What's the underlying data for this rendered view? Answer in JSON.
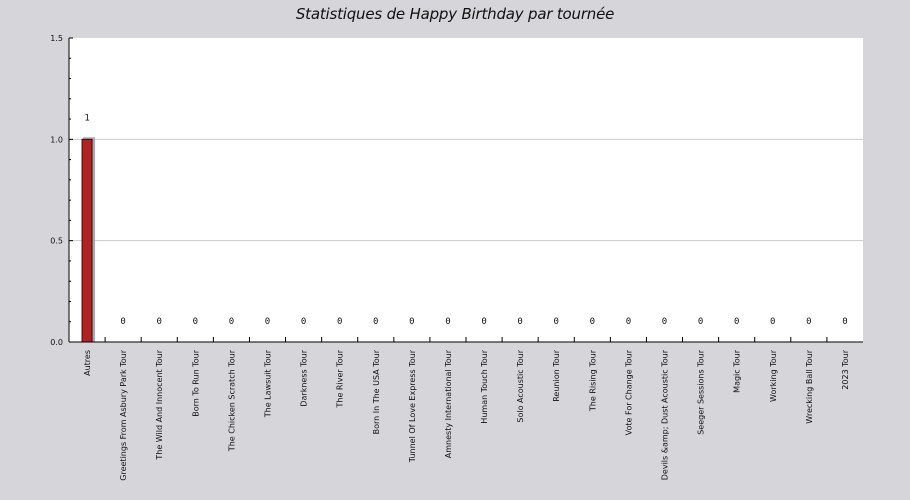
{
  "chart_data": {
    "type": "bar",
    "title": "Statistiques de Happy Birthday par tournée",
    "xlabel": "",
    "ylabel": "",
    "ylim": [
      0,
      1.5
    ],
    "yticks": [
      "0.0",
      "0.5",
      "1.0",
      "1.5"
    ],
    "grid": true,
    "categories": [
      "Autres",
      "Greetings From Asbury Park Tour",
      "The Wild And Innocent Tour",
      "Born To Run Tour",
      "The Chicken Scratch Tour",
      "The Lawsuit Tour",
      "Darkness Tour",
      "The River Tour",
      "Born In The USA Tour",
      "Tunnel Of Love Express Tour",
      "Amnesty International Tour",
      "Human Touch Tour",
      "Solo Acoustic Tour",
      "Reunion Tour",
      "The Rising Tour",
      "Vote For Change Tour",
      "Devils &amp; Dust Acoustic Tour",
      "Seeger Sessions Tour",
      "Magic Tour",
      "Working Tour",
      "Wrecking Ball Tour",
      "2023 Tour"
    ],
    "values": [
      1,
      0,
      0,
      0,
      0,
      0,
      0,
      0,
      0,
      0,
      0,
      0,
      0,
      0,
      0,
      0,
      0,
      0,
      0,
      0,
      0,
      0
    ],
    "data_labels": [
      "1",
      "0",
      "0",
      "0",
      "0",
      "0",
      "0",
      "0",
      "0",
      "0",
      "0",
      "0",
      "0",
      "0",
      "0",
      "0",
      "0",
      "0",
      "0",
      "0",
      "0",
      "0"
    ],
    "colors": {
      "bar": "#b22222",
      "bar_edge": "#3a0a0a",
      "bar_shadow": "#a9aab4",
      "plot_bg": "#ffffff",
      "page_bg": "#d6d5da",
      "grid": "#cccccc"
    }
  }
}
